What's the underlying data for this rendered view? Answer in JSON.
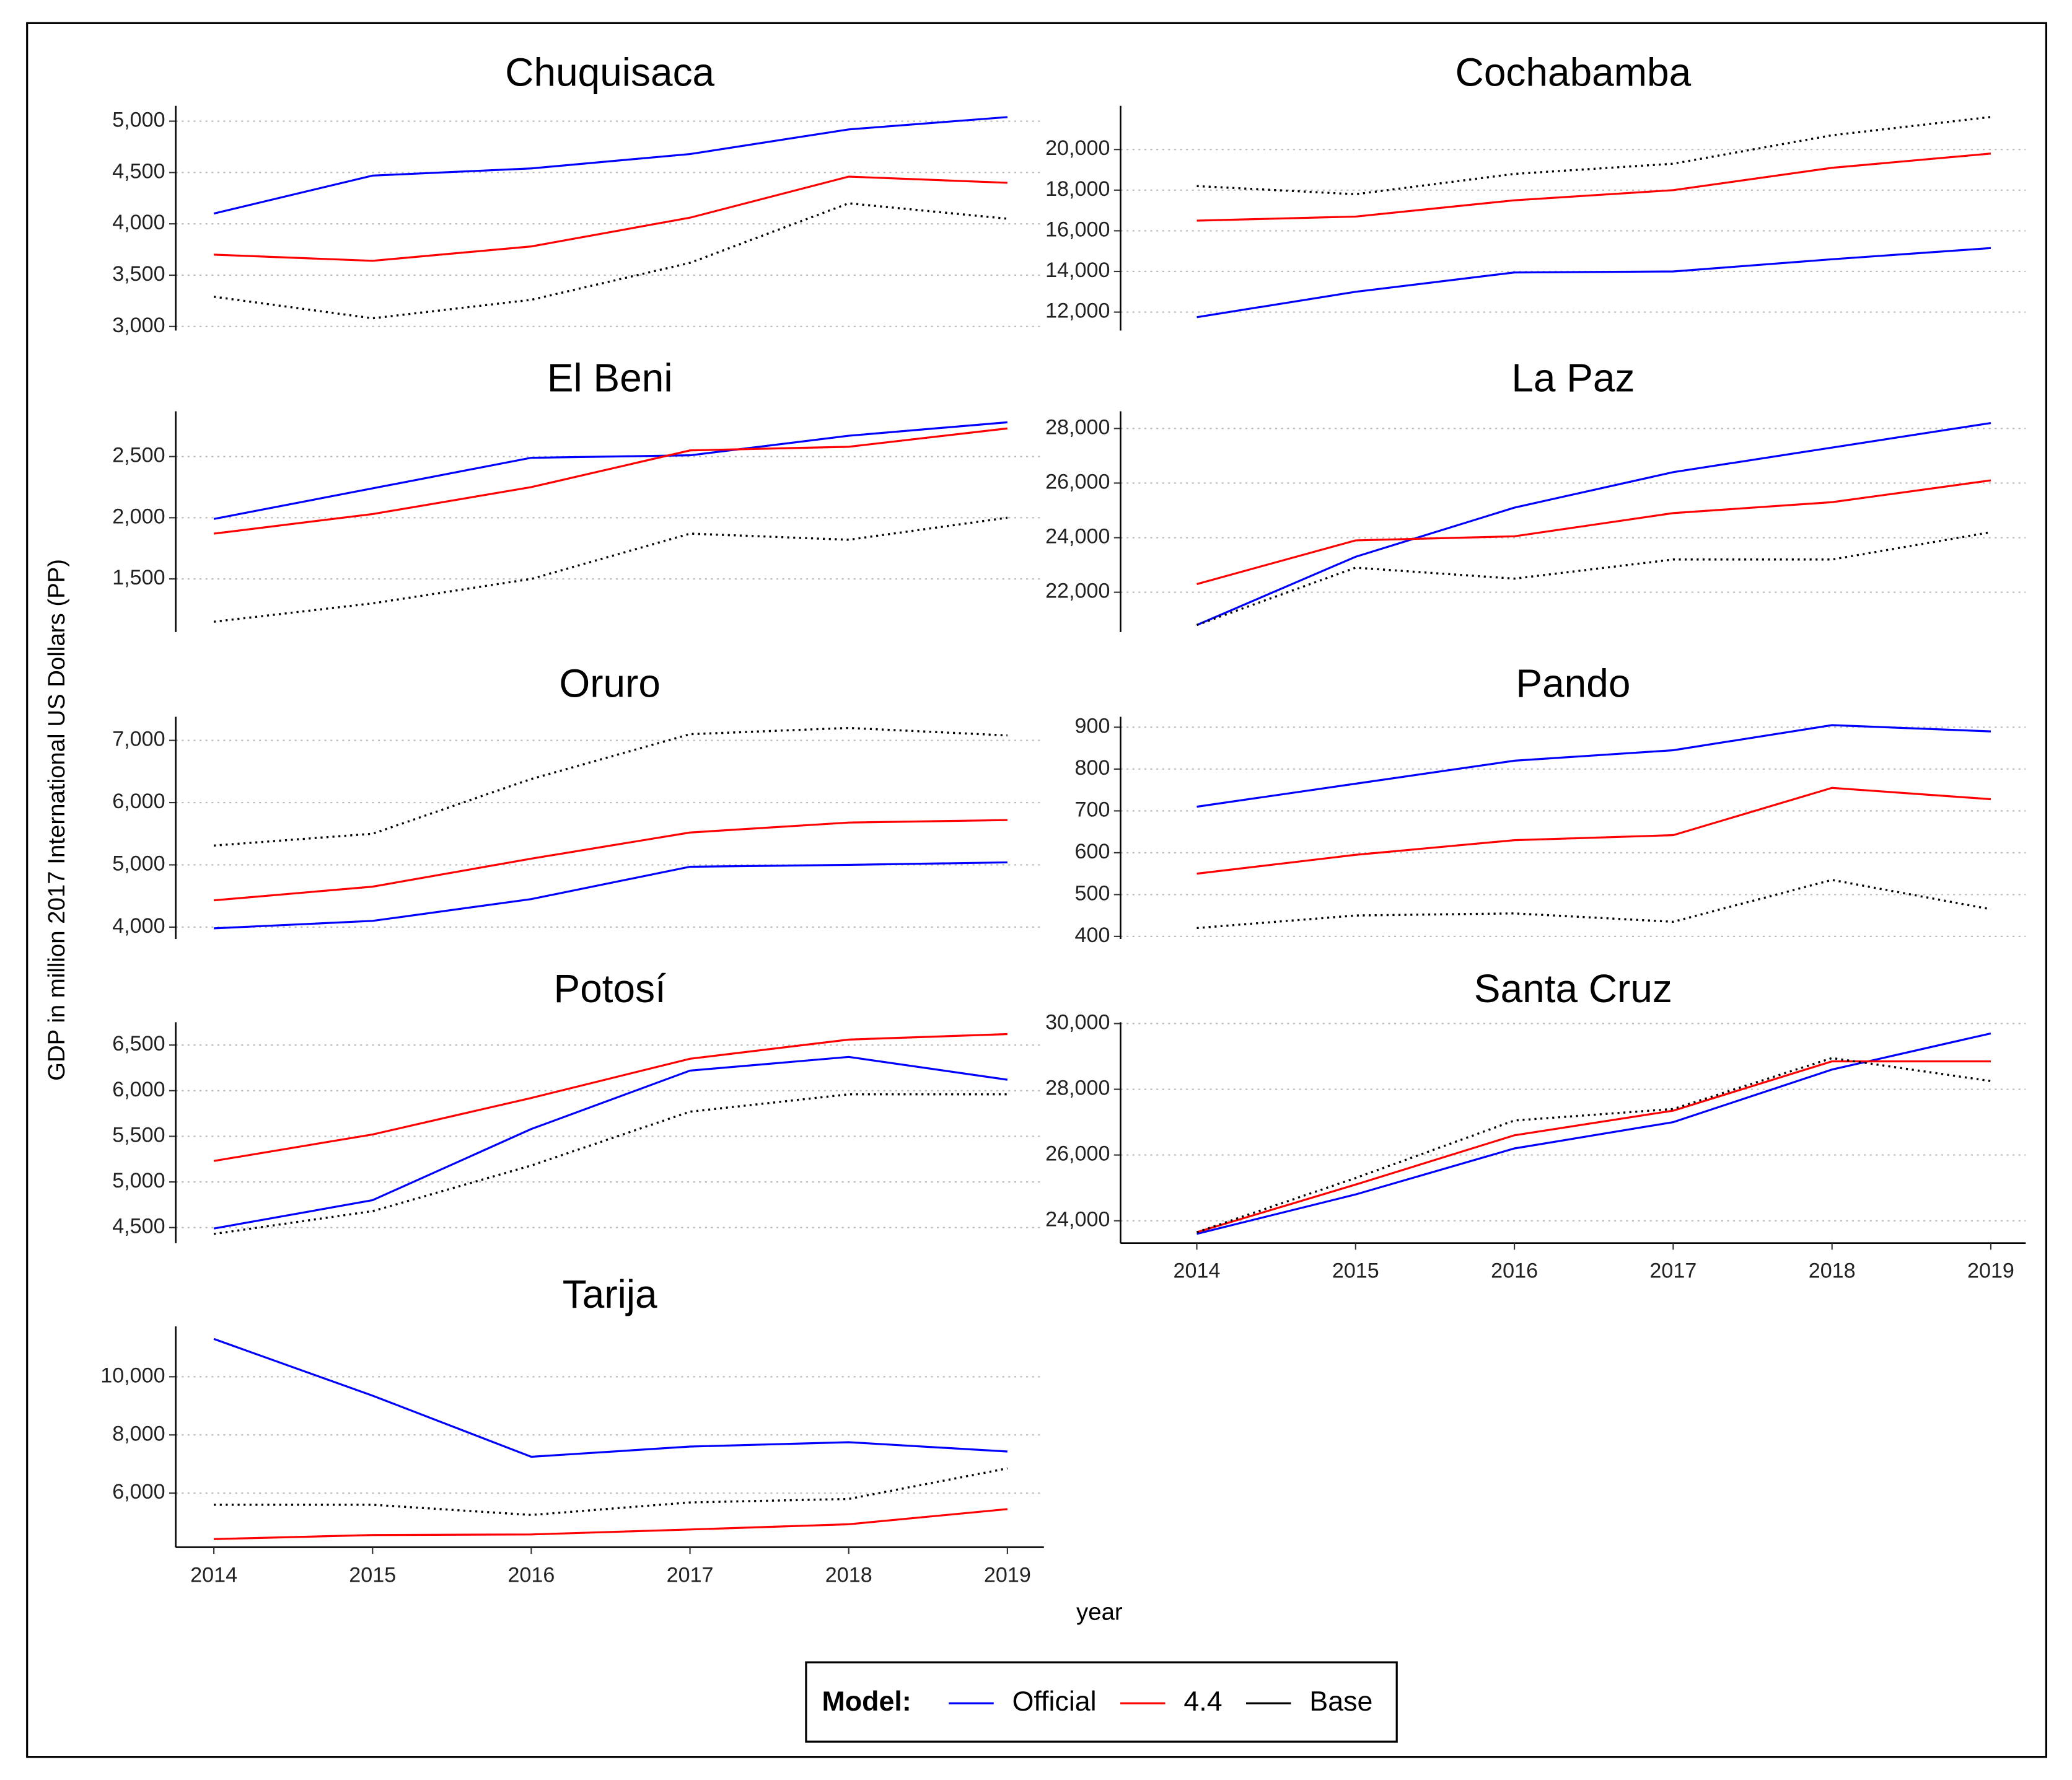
{
  "ylabel": "GDP in million 2017 International US Dollars (PP)",
  "xlabel": "year",
  "legend_title": "Model:",
  "chart_data": [
    {
      "type": "line",
      "title": "Chuquisaca",
      "x": [
        2014,
        2015,
        2016,
        2017,
        2018,
        2019
      ],
      "xlim": [
        2013.76,
        2019.23
      ],
      "ylim": [
        2960,
        5150
      ],
      "yticks": [
        {
          "value": 3000,
          "label": "3,000"
        },
        {
          "value": 3500,
          "label": "3,500"
        },
        {
          "value": 4000,
          "label": "4,000"
        },
        {
          "value": 4500,
          "label": "4,500"
        },
        {
          "value": 5000,
          "label": "5,000"
        }
      ],
      "grid": true,
      "series": [
        {
          "name": "Official",
          "color": "#0000ff",
          "linestyle": "solid",
          "values": [
            4100,
            4470,
            4540,
            4680,
            4920,
            5040
          ]
        },
        {
          "name": "4.4",
          "color": "#ff0000",
          "linestyle": "solid",
          "values": [
            3700,
            3640,
            3780,
            4060,
            4460,
            4400
          ]
        },
        {
          "name": "Base",
          "color": "#000000",
          "linestyle": "dotted",
          "values": [
            3290,
            3080,
            3260,
            3620,
            4200,
            4050
          ]
        }
      ]
    },
    {
      "type": "line",
      "title": "Cochabamba",
      "x": [
        2014,
        2015,
        2016,
        2017,
        2018,
        2019
      ],
      "xlim": [
        2013.52,
        2019.22
      ],
      "ylim": [
        11090,
        22150
      ],
      "yticks": [
        {
          "value": 12000,
          "label": "12,000"
        },
        {
          "value": 14000,
          "label": "14,000"
        },
        {
          "value": 16000,
          "label": "16,000"
        },
        {
          "value": 18000,
          "label": "18,000"
        },
        {
          "value": 20000,
          "label": "20,000"
        }
      ],
      "grid": true,
      "series": [
        {
          "name": "Official",
          "color": "#0000ff",
          "linestyle": "solid",
          "values": [
            11750,
            13000,
            13950,
            14000,
            14600,
            15150
          ]
        },
        {
          "name": "4.4",
          "color": "#ff0000",
          "linestyle": "solid",
          "values": [
            16500,
            16700,
            17500,
            18000,
            19100,
            19800
          ]
        },
        {
          "name": "Base",
          "color": "#000000",
          "linestyle": "dotted",
          "values": [
            18200,
            17800,
            18800,
            19300,
            20700,
            21600
          ]
        }
      ]
    },
    {
      "type": "line",
      "title": "El Beni",
      "x": [
        2014,
        2015,
        2016,
        2017,
        2018,
        2019
      ],
      "xlim": [
        2013.76,
        2019.23
      ],
      "ylim": [
        1065,
        2870
      ],
      "yticks": [
        {
          "value": 1500,
          "label": "1,500"
        },
        {
          "value": 2000,
          "label": "2,000"
        },
        {
          "value": 2500,
          "label": "2,500"
        }
      ],
      "grid": true,
      "series": [
        {
          "name": "Official",
          "color": "#0000ff",
          "linestyle": "solid",
          "values": [
            1990,
            2240,
            2490,
            2510,
            2670,
            2780
          ]
        },
        {
          "name": "4.4",
          "color": "#ff0000",
          "linestyle": "solid",
          "values": [
            1870,
            2030,
            2250,
            2550,
            2580,
            2730
          ]
        },
        {
          "name": "Base",
          "color": "#000000",
          "linestyle": "dotted",
          "values": [
            1150,
            1300,
            1500,
            1870,
            1820,
            2000
          ]
        }
      ]
    },
    {
      "type": "line",
      "title": "La Paz",
      "x": [
        2014,
        2015,
        2016,
        2017,
        2018,
        2019
      ],
      "xlim": [
        2013.52,
        2019.22
      ],
      "ylim": [
        20540,
        28630
      ],
      "yticks": [
        {
          "value": 22000,
          "label": "22,000"
        },
        {
          "value": 24000,
          "label": "24,000"
        },
        {
          "value": 26000,
          "label": "26,000"
        },
        {
          "value": 28000,
          "label": "28,000"
        }
      ],
      "grid": true,
      "series": [
        {
          "name": "Official",
          "color": "#0000ff",
          "linestyle": "solid",
          "values": [
            20800,
            23300,
            25100,
            26400,
            27300,
            28200
          ]
        },
        {
          "name": "4.4",
          "color": "#ff0000",
          "linestyle": "solid",
          "values": [
            22300,
            23900,
            24050,
            24900,
            25300,
            26100
          ]
        },
        {
          "name": "Base",
          "color": "#000000",
          "linestyle": "dotted",
          "values": [
            20800,
            22900,
            22500,
            23200,
            23200,
            24200
          ]
        }
      ]
    },
    {
      "type": "line",
      "title": "Oruro",
      "x": [
        2014,
        2015,
        2016,
        2017,
        2018,
        2019
      ],
      "xlim": [
        2013.76,
        2019.23
      ],
      "ylim": [
        3810,
        7380
      ],
      "yticks": [
        {
          "value": 4000,
          "label": "4,000"
        },
        {
          "value": 5000,
          "label": "5,000"
        },
        {
          "value": 6000,
          "label": "6,000"
        },
        {
          "value": 7000,
          "label": "7,000"
        }
      ],
      "grid": true,
      "series": [
        {
          "name": "Official",
          "color": "#0000ff",
          "linestyle": "solid",
          "values": [
            3980,
            4100,
            4450,
            4970,
            5000,
            5040
          ]
        },
        {
          "name": "4.4",
          "color": "#ff0000",
          "linestyle": "solid",
          "values": [
            4430,
            4650,
            5100,
            5520,
            5680,
            5720
          ]
        },
        {
          "name": "Base",
          "color": "#000000",
          "linestyle": "dotted",
          "values": [
            5310,
            5500,
            6380,
            7100,
            7200,
            7080
          ]
        }
      ]
    },
    {
      "type": "line",
      "title": "Pando",
      "x": [
        2014,
        2015,
        2016,
        2017,
        2018,
        2019
      ],
      "xlim": [
        2013.52,
        2019.22
      ],
      "ylim": [
        394,
        925
      ],
      "yticks": [
        400,
        500,
        600,
        700,
        800,
        900
      ],
      "grid": true,
      "series": [
        {
          "name": "Official",
          "color": "#0000ff",
          "linestyle": "solid",
          "values": [
            710,
            765,
            820,
            845,
            905,
            890
          ]
        },
        {
          "name": "4.4",
          "color": "#ff0000",
          "linestyle": "solid",
          "values": [
            550,
            595,
            630,
            642,
            755,
            728
          ]
        },
        {
          "name": "Base",
          "color": "#000000",
          "linestyle": "dotted",
          "values": [
            420,
            450,
            455,
            435,
            535,
            465
          ]
        }
      ]
    },
    {
      "type": "line",
      "title": "Potosí",
      "x": [
        2014,
        2015,
        2016,
        2017,
        2018,
        2019
      ],
      "xlim": [
        2013.76,
        2019.23
      ],
      "ylim": [
        4330,
        6750
      ],
      "yticks": [
        {
          "value": 4500,
          "label": "4,500"
        },
        {
          "value": 5000,
          "label": "5,000"
        },
        {
          "value": 5500,
          "label": "5,500"
        },
        {
          "value": 6000,
          "label": "6,000"
        },
        {
          "value": 6500,
          "label": "6,500"
        }
      ],
      "grid": true,
      "series": [
        {
          "name": "Official",
          "color": "#0000ff",
          "linestyle": "solid",
          "values": [
            4490,
            4800,
            5580,
            6220,
            6370,
            6120
          ]
        },
        {
          "name": "4.4",
          "color": "#ff0000",
          "linestyle": "solid",
          "values": [
            5230,
            5520,
            5920,
            6350,
            6560,
            6620
          ]
        },
        {
          "name": "Base",
          "color": "#000000",
          "linestyle": "dotted",
          "values": [
            4430,
            4680,
            5180,
            5770,
            5960,
            5960
          ]
        }
      ]
    },
    {
      "type": "line",
      "title": "Santa Cruz",
      "x": [
        2014,
        2015,
        2016,
        2017,
        2018,
        2019
      ],
      "xlim": [
        2013.52,
        2019.22
      ],
      "ylim": [
        23320,
        30040
      ],
      "xticks": [
        2014,
        2015,
        2016,
        2017,
        2018,
        2019
      ],
      "yticks": [
        {
          "value": 24000,
          "label": "24,000"
        },
        {
          "value": 26000,
          "label": "26,000"
        },
        {
          "value": 28000,
          "label": "28,000"
        },
        {
          "value": 30000,
          "label": "30,000"
        }
      ],
      "grid": true,
      "series": [
        {
          "name": "Official",
          "color": "#0000ff",
          "linestyle": "solid",
          "values": [
            23600,
            24800,
            26200,
            27000,
            28600,
            29700
          ]
        },
        {
          "name": "4.4",
          "color": "#ff0000",
          "linestyle": "solid",
          "values": [
            23650,
            25100,
            26600,
            27350,
            28850,
            28850
          ]
        },
        {
          "name": "Base",
          "color": "#000000",
          "linestyle": "dotted",
          "values": [
            23650,
            25300,
            27050,
            27400,
            28950,
            28250
          ]
        }
      ]
    },
    {
      "type": "line",
      "title": "Tarija",
      "x": [
        2014,
        2015,
        2016,
        2017,
        2018,
        2019
      ],
      "xlim": [
        2013.76,
        2019.23
      ],
      "ylim": [
        4140,
        11730
      ],
      "xticks": [
        2014,
        2015,
        2016,
        2017,
        2018,
        2019
      ],
      "yticks": [
        {
          "value": 6000,
          "label": "6,000"
        },
        {
          "value": 8000,
          "label": "8,000"
        },
        {
          "value": 10000,
          "label": "10,000"
        }
      ],
      "grid": true,
      "series": [
        {
          "name": "Official",
          "color": "#0000ff",
          "linestyle": "solid",
          "values": [
            11300,
            9350,
            7250,
            7600,
            7750,
            7430
          ]
        },
        {
          "name": "4.4",
          "color": "#ff0000",
          "linestyle": "solid",
          "values": [
            4420,
            4560,
            4580,
            4750,
            4930,
            5450
          ]
        },
        {
          "name": "Base",
          "color": "#000000",
          "linestyle": "dotted",
          "values": [
            5600,
            5600,
            5250,
            5680,
            5800,
            6850
          ]
        }
      ]
    }
  ]
}
